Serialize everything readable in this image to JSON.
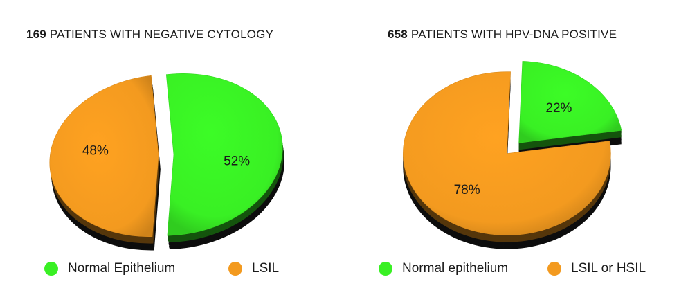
{
  "colors": {
    "green": "#39f024",
    "orange": "#f39a1f",
    "shadow": "#111111"
  },
  "chart_data": [
    {
      "type": "pie",
      "title": {
        "count": "169",
        "text": " PATIENTS WITH NEGATIVE CYTOLOGY"
      },
      "slices": [
        {
          "label": "Normal Epithelium",
          "value": 52,
          "text": "52%",
          "color": "#39f024"
        },
        {
          "label": "LSIL",
          "value": 48,
          "text": "48%",
          "color": "#f39a1f"
        }
      ],
      "legend_position": "bottom",
      "style": "3d-exploded"
    },
    {
      "type": "pie",
      "title": {
        "count": "658",
        "text": " PATIENTS WITH HPV-DNA POSITIVE"
      },
      "slices": [
        {
          "label": "Normal epithelium",
          "value": 22,
          "text": "22%",
          "color": "#39f024"
        },
        {
          "label": "LSIL or HSIL",
          "value": 78,
          "text": "78%",
          "color": "#f39a1f"
        }
      ],
      "legend_position": "bottom",
      "style": "3d-exploded"
    }
  ]
}
